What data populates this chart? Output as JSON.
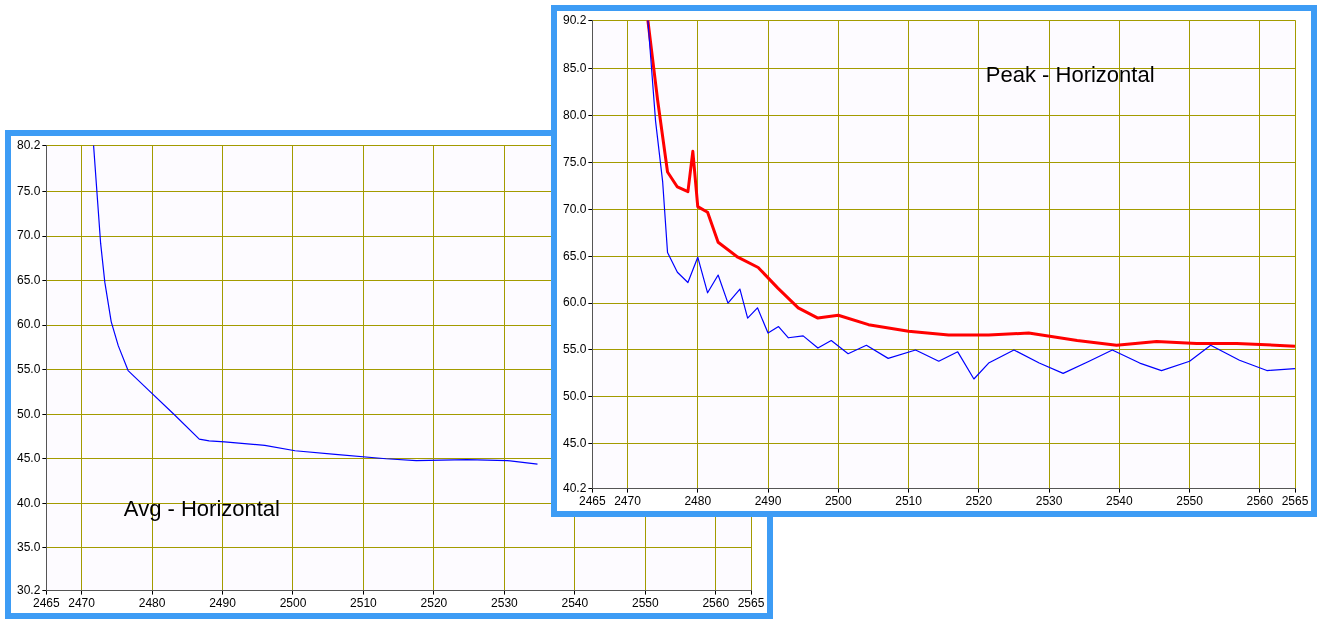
{
  "chart_data": [
    {
      "type": "line",
      "annotations": [
        "Avg - Horizontal"
      ],
      "xlim": [
        2465,
        2565
      ],
      "xticks": [
        2465,
        2470,
        2480,
        2490,
        2500,
        2510,
        2520,
        2530,
        2540,
        2550,
        2560,
        2565
      ],
      "ylim": [
        30.2,
        80.2
      ],
      "yticks": [
        30.2,
        {
          "value": 35,
          "label": "35.0"
        },
        {
          "value": 40,
          "label": "40.0"
        },
        {
          "value": 45,
          "label": "45.0"
        },
        {
          "value": 50,
          "label": "50.0"
        },
        {
          "value": 55,
          "label": "55.0"
        },
        {
          "value": 60,
          "label": "60.0"
        },
        {
          "value": 65,
          "label": "65.0"
        },
        {
          "value": 70,
          "label": "70.0"
        },
        {
          "value": 75,
          "label": "75.0"
        },
        80.2
      ],
      "grid": true,
      "legend": false,
      "marker": "none",
      "line_style": "solid",
      "series": [
        {
          "color": "#0000ff",
          "x": [
            2471.7,
            2472.3,
            2472.7,
            2473.3,
            2474.2,
            2475.2,
            2476.6,
            2479.5,
            2483.1,
            2486.7,
            2488.1,
            2490.3,
            2496.0,
            2500.3,
            2506.0,
            2513.2,
            2517.5,
            2524.7,
            2530.4,
            2534.7
          ],
          "values": [
            80.2,
            73.6,
            69.2,
            64.8,
            60.4,
            57.7,
            54.9,
            52.7,
            50.0,
            47.2,
            47.0,
            46.9,
            46.5,
            45.9,
            45.5,
            45.0,
            44.8,
            44.9,
            44.8,
            44.4
          ]
        }
      ]
    },
    {
      "type": "line",
      "annotations": [
        "Peak - Horizontal"
      ],
      "xlim": [
        2465,
        2565
      ],
      "xticks": [
        2465,
        2470,
        2480,
        2490,
        2500,
        2510,
        2520,
        2530,
        2540,
        2550,
        2560,
        2565
      ],
      "ylim": [
        40.2,
        90.2
      ],
      "yticks": [
        40.2,
        {
          "value": 45,
          "label": "45.0"
        },
        {
          "value": 50,
          "label": "50.0"
        },
        {
          "value": 55,
          "label": "55.0"
        },
        {
          "value": 60,
          "label": "60.0"
        },
        {
          "value": 65,
          "label": "65.0"
        },
        {
          "value": 70,
          "label": "70.0"
        },
        {
          "value": 75,
          "label": "75.0"
        },
        {
          "value": 80,
          "label": "80.0"
        },
        {
          "value": 85,
          "label": "85.0"
        },
        90.2
      ],
      "grid": true,
      "legend": false,
      "marker": "none",
      "line_style": "solid",
      "series": [
        {
          "color": "#0000ff",
          "x": [
            2472.9,
            2474.0,
            2475.0,
            2475.7,
            2477.1,
            2478.6,
            2480.0,
            2481.4,
            2482.9,
            2484.3,
            2486.0,
            2487.1,
            2488.5,
            2490.0,
            2491.5,
            2492.9,
            2495.0,
            2497.1,
            2499.0,
            2501.4,
            2504.0,
            2507.1,
            2511.0,
            2514.3,
            2517.0,
            2519.3,
            2521.4,
            2525.0,
            2528.6,
            2532.0,
            2535.7,
            2539.0,
            2542.9,
            2546.0,
            2550.0,
            2553.0,
            2557.1,
            2561.0,
            2565.0
          ],
          "values": [
            90.2,
            79.4,
            73.0,
            65.4,
            63.3,
            62.2,
            64.9,
            61.1,
            63.0,
            60.0,
            61.5,
            58.4,
            59.5,
            56.8,
            57.5,
            56.3,
            56.5,
            55.2,
            56.0,
            54.6,
            55.5,
            54.1,
            55.0,
            53.8,
            54.8,
            51.9,
            53.6,
            55.0,
            53.6,
            52.5,
            53.8,
            55.0,
            53.6,
            52.8,
            53.8,
            55.5,
            53.9,
            52.8,
            53.0
          ]
        },
        {
          "color": "#ff0000",
          "x": [
            2472.9,
            2474.3,
            2475.7,
            2477.1,
            2478.6,
            2479.3,
            2480.0,
            2481.4,
            2482.9,
            2485.7,
            2488.6,
            2491.4,
            2494.3,
            2497.1,
            2500.0,
            2504.3,
            2510.0,
            2515.7,
            2521.4,
            2527.1,
            2534.0,
            2539.6,
            2545.3,
            2551.0,
            2556.7,
            2565.0
          ],
          "values": [
            90.2,
            81.6,
            74.0,
            72.4,
            71.9,
            76.2,
            70.3,
            69.7,
            66.5,
            64.9,
            63.8,
            61.6,
            59.5,
            58.4,
            58.7,
            57.7,
            57.0,
            56.6,
            56.6,
            56.8,
            56.0,
            55.5,
            55.9,
            55.7,
            55.7,
            55.4
          ]
        }
      ]
    }
  ]
}
